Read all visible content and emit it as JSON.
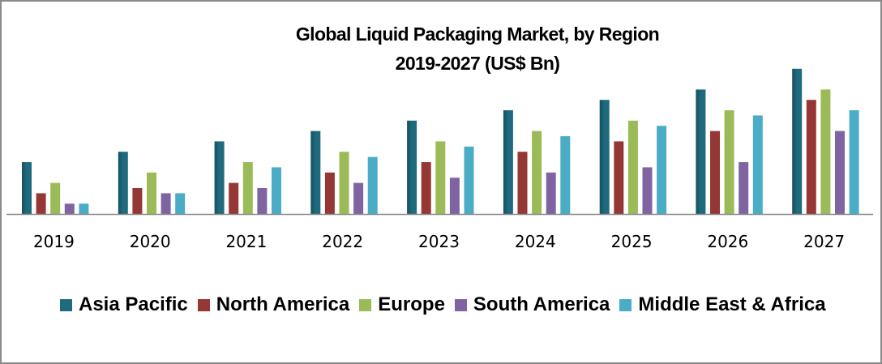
{
  "chart_data": {
    "type": "bar",
    "title": "Global Liquid Packaging Market, by Region",
    "subtitle": "2019-2027 (US$ Bn)",
    "xlabel": "",
    "ylabel": "",
    "categories": [
      "2019",
      "2020",
      "2021",
      "2022",
      "2023",
      "2024",
      "2025",
      "2026",
      "2027"
    ],
    "ylim": [
      0,
      14.5
    ],
    "grid": false,
    "legend_position": "bottom",
    "series": [
      {
        "name": "Asia Pacific",
        "color": "#1f6b7d",
        "values": [
          5,
          6,
          7,
          8,
          9,
          10,
          11,
          12,
          14
        ]
      },
      {
        "name": "North America",
        "color": "#953735",
        "values": [
          2,
          2.5,
          3,
          4,
          5,
          6,
          7,
          8,
          11
        ]
      },
      {
        "name": "Europe",
        "color": "#9bbb59",
        "values": [
          3,
          4,
          5,
          6,
          7,
          8,
          9,
          10,
          12
        ]
      },
      {
        "name": "South America",
        "color": "#8064a2",
        "values": [
          1,
          2,
          2.5,
          3,
          3.5,
          4,
          4.5,
          5,
          8
        ]
      },
      {
        "name": "Middle East & Africa",
        "color": "#4bacc6",
        "values": [
          1,
          2,
          4.5,
          5.5,
          6.5,
          7.5,
          8.5,
          9.5,
          10
        ]
      }
    ]
  }
}
